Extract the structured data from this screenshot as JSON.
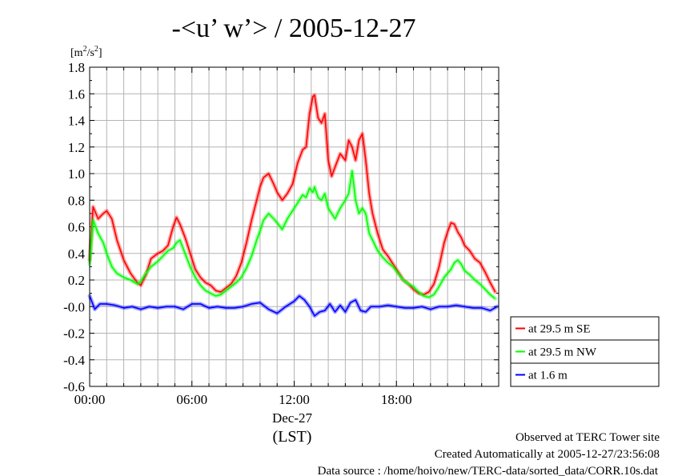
{
  "chart_data": {
    "type": "line",
    "title": "-<u’ w’> / 2005-12-27",
    "ylabel": "[m²/s²]",
    "ylabel_base": "[m",
    "ylabel_exp1": "2",
    "ylabel_mid": "/s",
    "ylabel_exp2": "2",
    "ylabel_end": "]",
    "ylim": [
      -0.6,
      1.8
    ],
    "xlim": [
      0,
      24
    ],
    "yticks": [
      -0.6,
      -0.4,
      -0.2,
      0.0,
      0.2,
      0.4,
      0.6,
      0.8,
      1.0,
      1.2,
      1.4,
      1.6,
      1.8
    ],
    "ytick_labels": [
      "-0.6",
      "-0.4",
      "-0.2",
      "-0.0",
      "0.2",
      "0.4",
      "0.6",
      "0.8",
      "1.0",
      "1.2",
      "1.4",
      "1.6",
      "1.8"
    ],
    "xticks": [
      0,
      6,
      12,
      18
    ],
    "xtick_labels": [
      "00:00",
      "06:00",
      "12:00",
      "18:00"
    ],
    "date_label": "Dec-27",
    "xlabel": "(LST)",
    "grid": true,
    "legend_position": "right",
    "series": [
      {
        "name": "at 29.5 m SE",
        "color": "#ff0000",
        "x": [
          0,
          0.2,
          0.5,
          0.8,
          1.0,
          1.3,
          1.6,
          2.0,
          2.4,
          2.8,
          3.0,
          3.3,
          3.6,
          4.0,
          4.3,
          4.6,
          4.9,
          5.1,
          5.3,
          5.6,
          5.9,
          6.2,
          6.5,
          6.8,
          7.1,
          7.4,
          7.7,
          8.0,
          8.3,
          8.6,
          8.9,
          9.2,
          9.5,
          9.8,
          10.0,
          10.2,
          10.5,
          10.8,
          11.0,
          11.3,
          11.6,
          11.9,
          12.2,
          12.5,
          12.7,
          12.9,
          13.1,
          13.2,
          13.4,
          13.6,
          13.8,
          14.0,
          14.2,
          14.4,
          14.7,
          15.0,
          15.2,
          15.4,
          15.6,
          15.8,
          16.0,
          16.2,
          16.4,
          16.6,
          16.9,
          17.2,
          17.5,
          17.8,
          18.1,
          18.4,
          18.7,
          19.0,
          19.3,
          19.6,
          19.9,
          20.2,
          20.5,
          20.8,
          21.0,
          21.2,
          21.4,
          21.6,
          21.8,
          22.0,
          22.3,
          22.6,
          22.9,
          23.2,
          23.5,
          23.8
        ],
        "y": [
          0.35,
          0.75,
          0.66,
          0.7,
          0.72,
          0.66,
          0.5,
          0.35,
          0.25,
          0.18,
          0.16,
          0.24,
          0.36,
          0.4,
          0.42,
          0.46,
          0.6,
          0.67,
          0.62,
          0.52,
          0.4,
          0.28,
          0.22,
          0.18,
          0.16,
          0.12,
          0.11,
          0.14,
          0.17,
          0.23,
          0.33,
          0.48,
          0.65,
          0.8,
          0.9,
          0.97,
          1.0,
          0.92,
          0.86,
          0.8,
          0.85,
          0.92,
          1.08,
          1.18,
          1.2,
          1.45,
          1.58,
          1.59,
          1.42,
          1.38,
          1.45,
          1.1,
          0.98,
          1.05,
          1.15,
          1.1,
          1.25,
          1.2,
          1.1,
          1.25,
          1.3,
          1.1,
          0.85,
          0.7,
          0.55,
          0.43,
          0.38,
          0.32,
          0.26,
          0.2,
          0.17,
          0.13,
          0.1,
          0.09,
          0.11,
          0.17,
          0.3,
          0.48,
          0.56,
          0.63,
          0.62,
          0.56,
          0.52,
          0.46,
          0.42,
          0.36,
          0.33,
          0.26,
          0.18,
          0.11
        ]
      },
      {
        "name": "at 29.5 m NW",
        "color": "#00ff00",
        "x": [
          0,
          0.2,
          0.5,
          0.8,
          1.0,
          1.3,
          1.6,
          2.0,
          2.4,
          2.8,
          3.0,
          3.3,
          3.6,
          4.0,
          4.3,
          4.6,
          4.9,
          5.1,
          5.3,
          5.6,
          5.9,
          6.2,
          6.5,
          6.8,
          7.1,
          7.4,
          7.7,
          8.0,
          8.3,
          8.6,
          8.9,
          9.2,
          9.5,
          9.8,
          10.0,
          10.2,
          10.5,
          10.8,
          11.0,
          11.3,
          11.6,
          11.9,
          12.2,
          12.5,
          12.7,
          12.9,
          13.1,
          13.2,
          13.4,
          13.6,
          13.8,
          14.0,
          14.2,
          14.4,
          14.7,
          15.0,
          15.2,
          15.4,
          15.6,
          15.8,
          16.0,
          16.2,
          16.4,
          16.6,
          16.9,
          17.2,
          17.5,
          17.8,
          18.1,
          18.4,
          18.7,
          19.0,
          19.3,
          19.6,
          19.9,
          20.2,
          20.5,
          20.8,
          21.0,
          21.2,
          21.4,
          21.6,
          21.8,
          22.0,
          22.3,
          22.6,
          22.9,
          23.2,
          23.5,
          23.8
        ],
        "y": [
          0.32,
          0.65,
          0.55,
          0.48,
          0.4,
          0.3,
          0.25,
          0.22,
          0.2,
          0.17,
          0.19,
          0.25,
          0.3,
          0.34,
          0.38,
          0.42,
          0.44,
          0.48,
          0.5,
          0.4,
          0.3,
          0.22,
          0.16,
          0.12,
          0.1,
          0.08,
          0.09,
          0.12,
          0.15,
          0.18,
          0.22,
          0.29,
          0.38,
          0.5,
          0.57,
          0.65,
          0.7,
          0.66,
          0.63,
          0.58,
          0.66,
          0.72,
          0.78,
          0.84,
          0.82,
          0.89,
          0.86,
          0.9,
          0.82,
          0.8,
          0.85,
          0.74,
          0.7,
          0.66,
          0.74,
          0.8,
          0.85,
          1.02,
          0.8,
          0.7,
          0.74,
          0.7,
          0.55,
          0.5,
          0.42,
          0.37,
          0.33,
          0.3,
          0.25,
          0.2,
          0.17,
          0.15,
          0.11,
          0.08,
          0.07,
          0.09,
          0.15,
          0.22,
          0.25,
          0.28,
          0.33,
          0.35,
          0.32,
          0.27,
          0.24,
          0.2,
          0.17,
          0.13,
          0.09,
          0.06
        ]
      },
      {
        "name": "at 1.6 m",
        "color": "#0000ff",
        "x": [
          0,
          0.3,
          0.6,
          1.0,
          1.5,
          2.0,
          2.5,
          3.0,
          3.5,
          4.0,
          4.5,
          5.0,
          5.5,
          6.0,
          6.5,
          7.0,
          7.5,
          8.0,
          8.5,
          9.0,
          9.5,
          10.0,
          10.5,
          11.0,
          11.5,
          12.0,
          12.3,
          12.6,
          12.9,
          13.2,
          13.5,
          13.8,
          14.1,
          14.4,
          14.7,
          15.0,
          15.3,
          15.6,
          15.9,
          16.2,
          16.5,
          17.0,
          17.5,
          18.0,
          18.5,
          19.0,
          19.5,
          20.0,
          20.5,
          21.0,
          21.5,
          22.0,
          22.5,
          23.0,
          23.5,
          23.9
        ],
        "y": [
          0.08,
          -0.02,
          0.02,
          0.02,
          0.01,
          -0.01,
          0.0,
          -0.02,
          0.0,
          -0.01,
          0.0,
          0.0,
          -0.02,
          0.02,
          0.02,
          -0.01,
          0.0,
          -0.01,
          -0.01,
          0.0,
          0.02,
          0.03,
          -0.02,
          -0.05,
          0.0,
          0.04,
          0.08,
          0.05,
          0.0,
          -0.07,
          -0.04,
          -0.03,
          0.02,
          -0.04,
          0.01,
          -0.04,
          0.03,
          0.05,
          -0.03,
          -0.04,
          0.0,
          0.0,
          0.01,
          0.0,
          -0.01,
          -0.01,
          0.0,
          -0.02,
          0.0,
          0.0,
          0.01,
          0.0,
          -0.01,
          -0.01,
          -0.03,
          0.0
        ]
      }
    ]
  },
  "footer": {
    "line1": "Observed at TERC Tower site",
    "line2": "Created Automatically at 2005-12-27/23:56:08",
    "line3": "Data source : /home/hoivo/new/TERC-data/sorted_data/CORR.10s.dat"
  }
}
